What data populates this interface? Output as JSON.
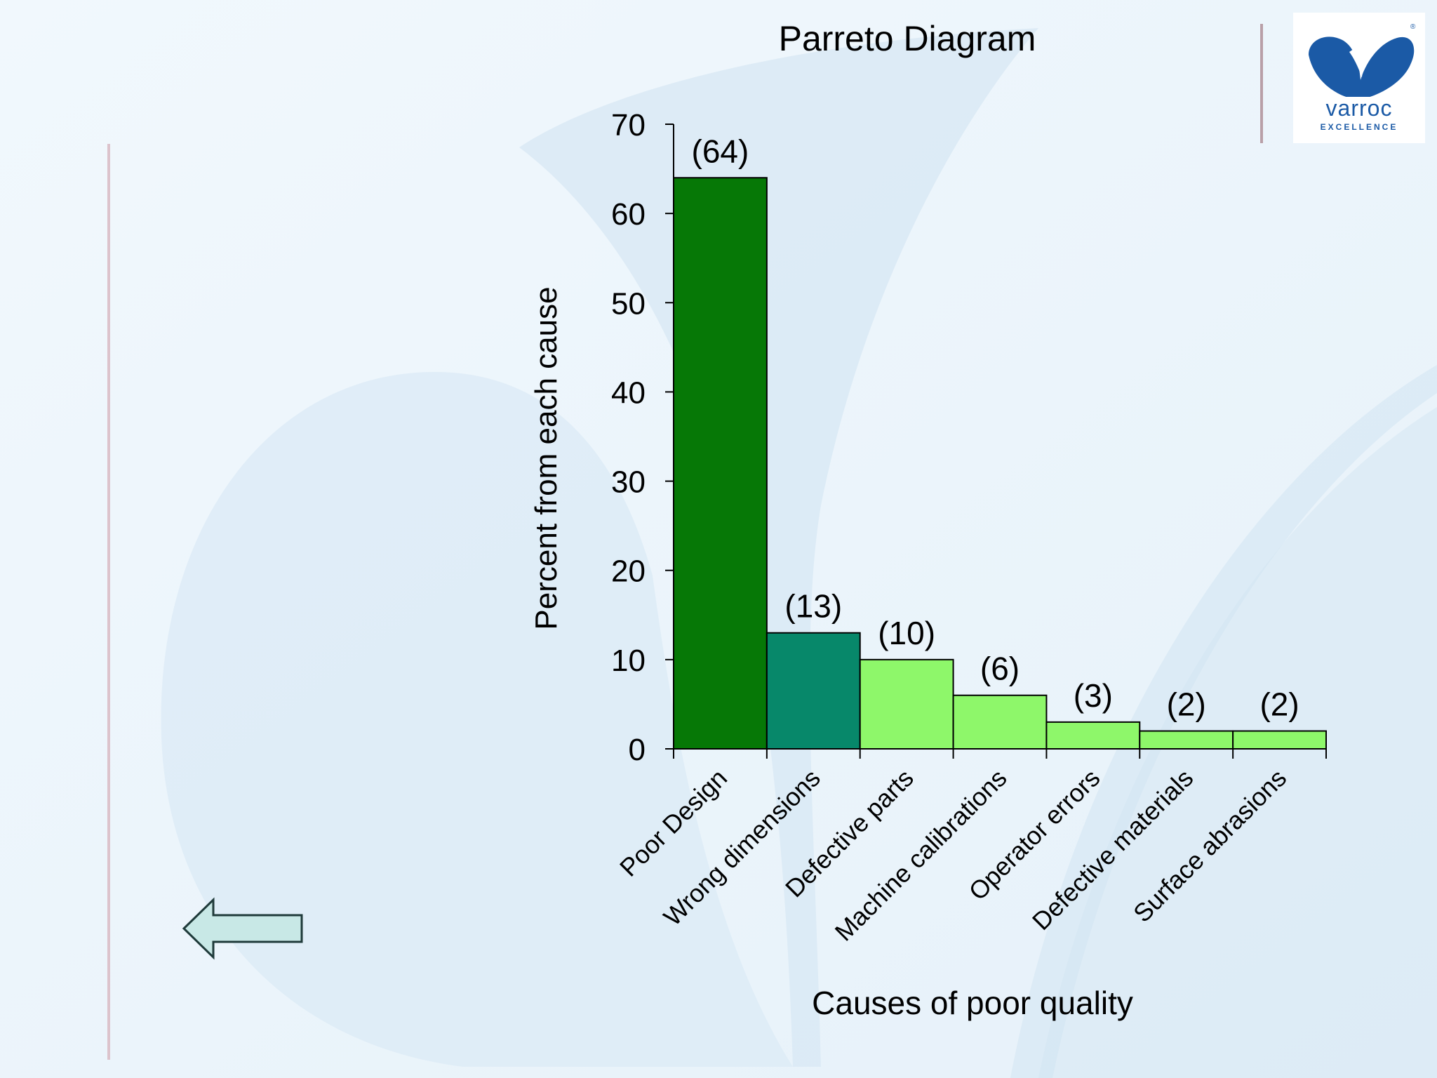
{
  "logo": {
    "brand": "varroc",
    "tagline": "EXCELLENCE",
    "registered_mark": "®"
  },
  "navigation": {
    "back_icon": "left-arrow-icon"
  },
  "colors": {
    "background": "#eaf4fb",
    "bar_dark_green": "#067806",
    "bar_teal": "#07886a",
    "bar_light_green": "#8ef76a",
    "logo_blue": "#1b5aa6",
    "arrow_fill": "#c8e8e6"
  },
  "chart_data": {
    "type": "bar",
    "title": "Parreto Diagram",
    "xlabel": "Causes of poor quality",
    "ylabel": "Percent from each cause",
    "ylim": [
      0,
      70
    ],
    "yticks": [
      "0",
      "10",
      "20",
      "30",
      "40",
      "50",
      "60",
      "70"
    ],
    "categories": [
      "Poor Design",
      "Wrong dimensions",
      "Defective parts",
      "Machine calibrations",
      "Operator errors",
      "Defective materials",
      "Surface abrasions"
    ],
    "values": [
      64,
      13,
      10,
      6,
      3,
      2,
      2
    ],
    "data_labels": [
      "(64)",
      "(13)",
      "(10)",
      "(6)",
      "(3)",
      "(2)",
      "(2)"
    ],
    "bar_colors": [
      "#067806",
      "#07886a",
      "#8ef76a",
      "#8ef76a",
      "#8ef76a",
      "#8ef76a",
      "#8ef76a"
    ],
    "grid": false,
    "legend": "none"
  }
}
